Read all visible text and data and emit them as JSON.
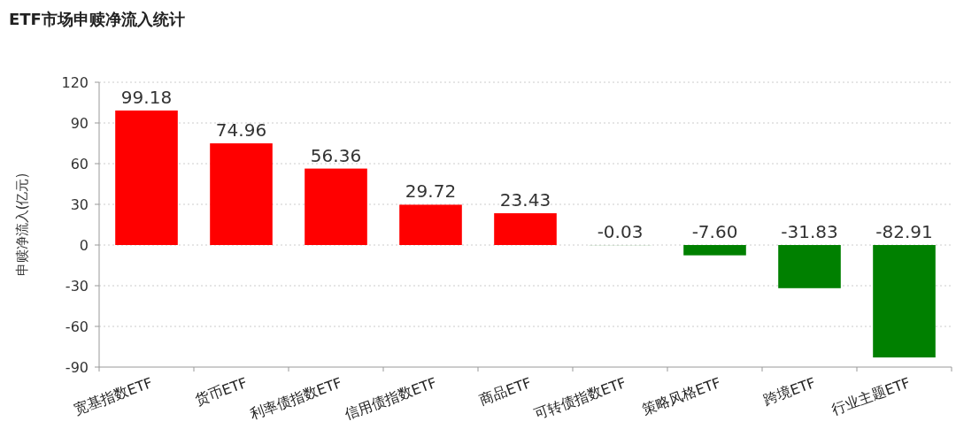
{
  "chart_data": {
    "type": "bar",
    "title": "ETF市场申赎净流入统计",
    "ylabel": "申赎净流入(亿元)",
    "categories": [
      "宽基指数ETF",
      "货币ETF",
      "利率债指数ETF",
      "信用债指数ETF",
      "商品ETF",
      "可转债指数ETF",
      "策略风格ETF",
      "跨境ETF",
      "行业主题ETF"
    ],
    "values": [
      99.18,
      74.96,
      56.36,
      29.72,
      23.43,
      -0.03,
      -7.6,
      -31.83,
      -82.91
    ],
    "colors": [
      "#ff0000",
      "#ff0000",
      "#ff0000",
      "#ff0000",
      "#ff0000",
      "#008000",
      "#008000",
      "#008000",
      "#008000"
    ],
    "value_labels": [
      "99.18",
      "74.96",
      "56.36",
      "29.72",
      "23.43",
      "-0.03",
      "-7.60",
      "-31.83",
      "-82.91"
    ],
    "ylim": [
      -90,
      120
    ],
    "yticks": [
      -90,
      -60,
      -30,
      0,
      30,
      60,
      90,
      120
    ],
    "grid": "y"
  }
}
